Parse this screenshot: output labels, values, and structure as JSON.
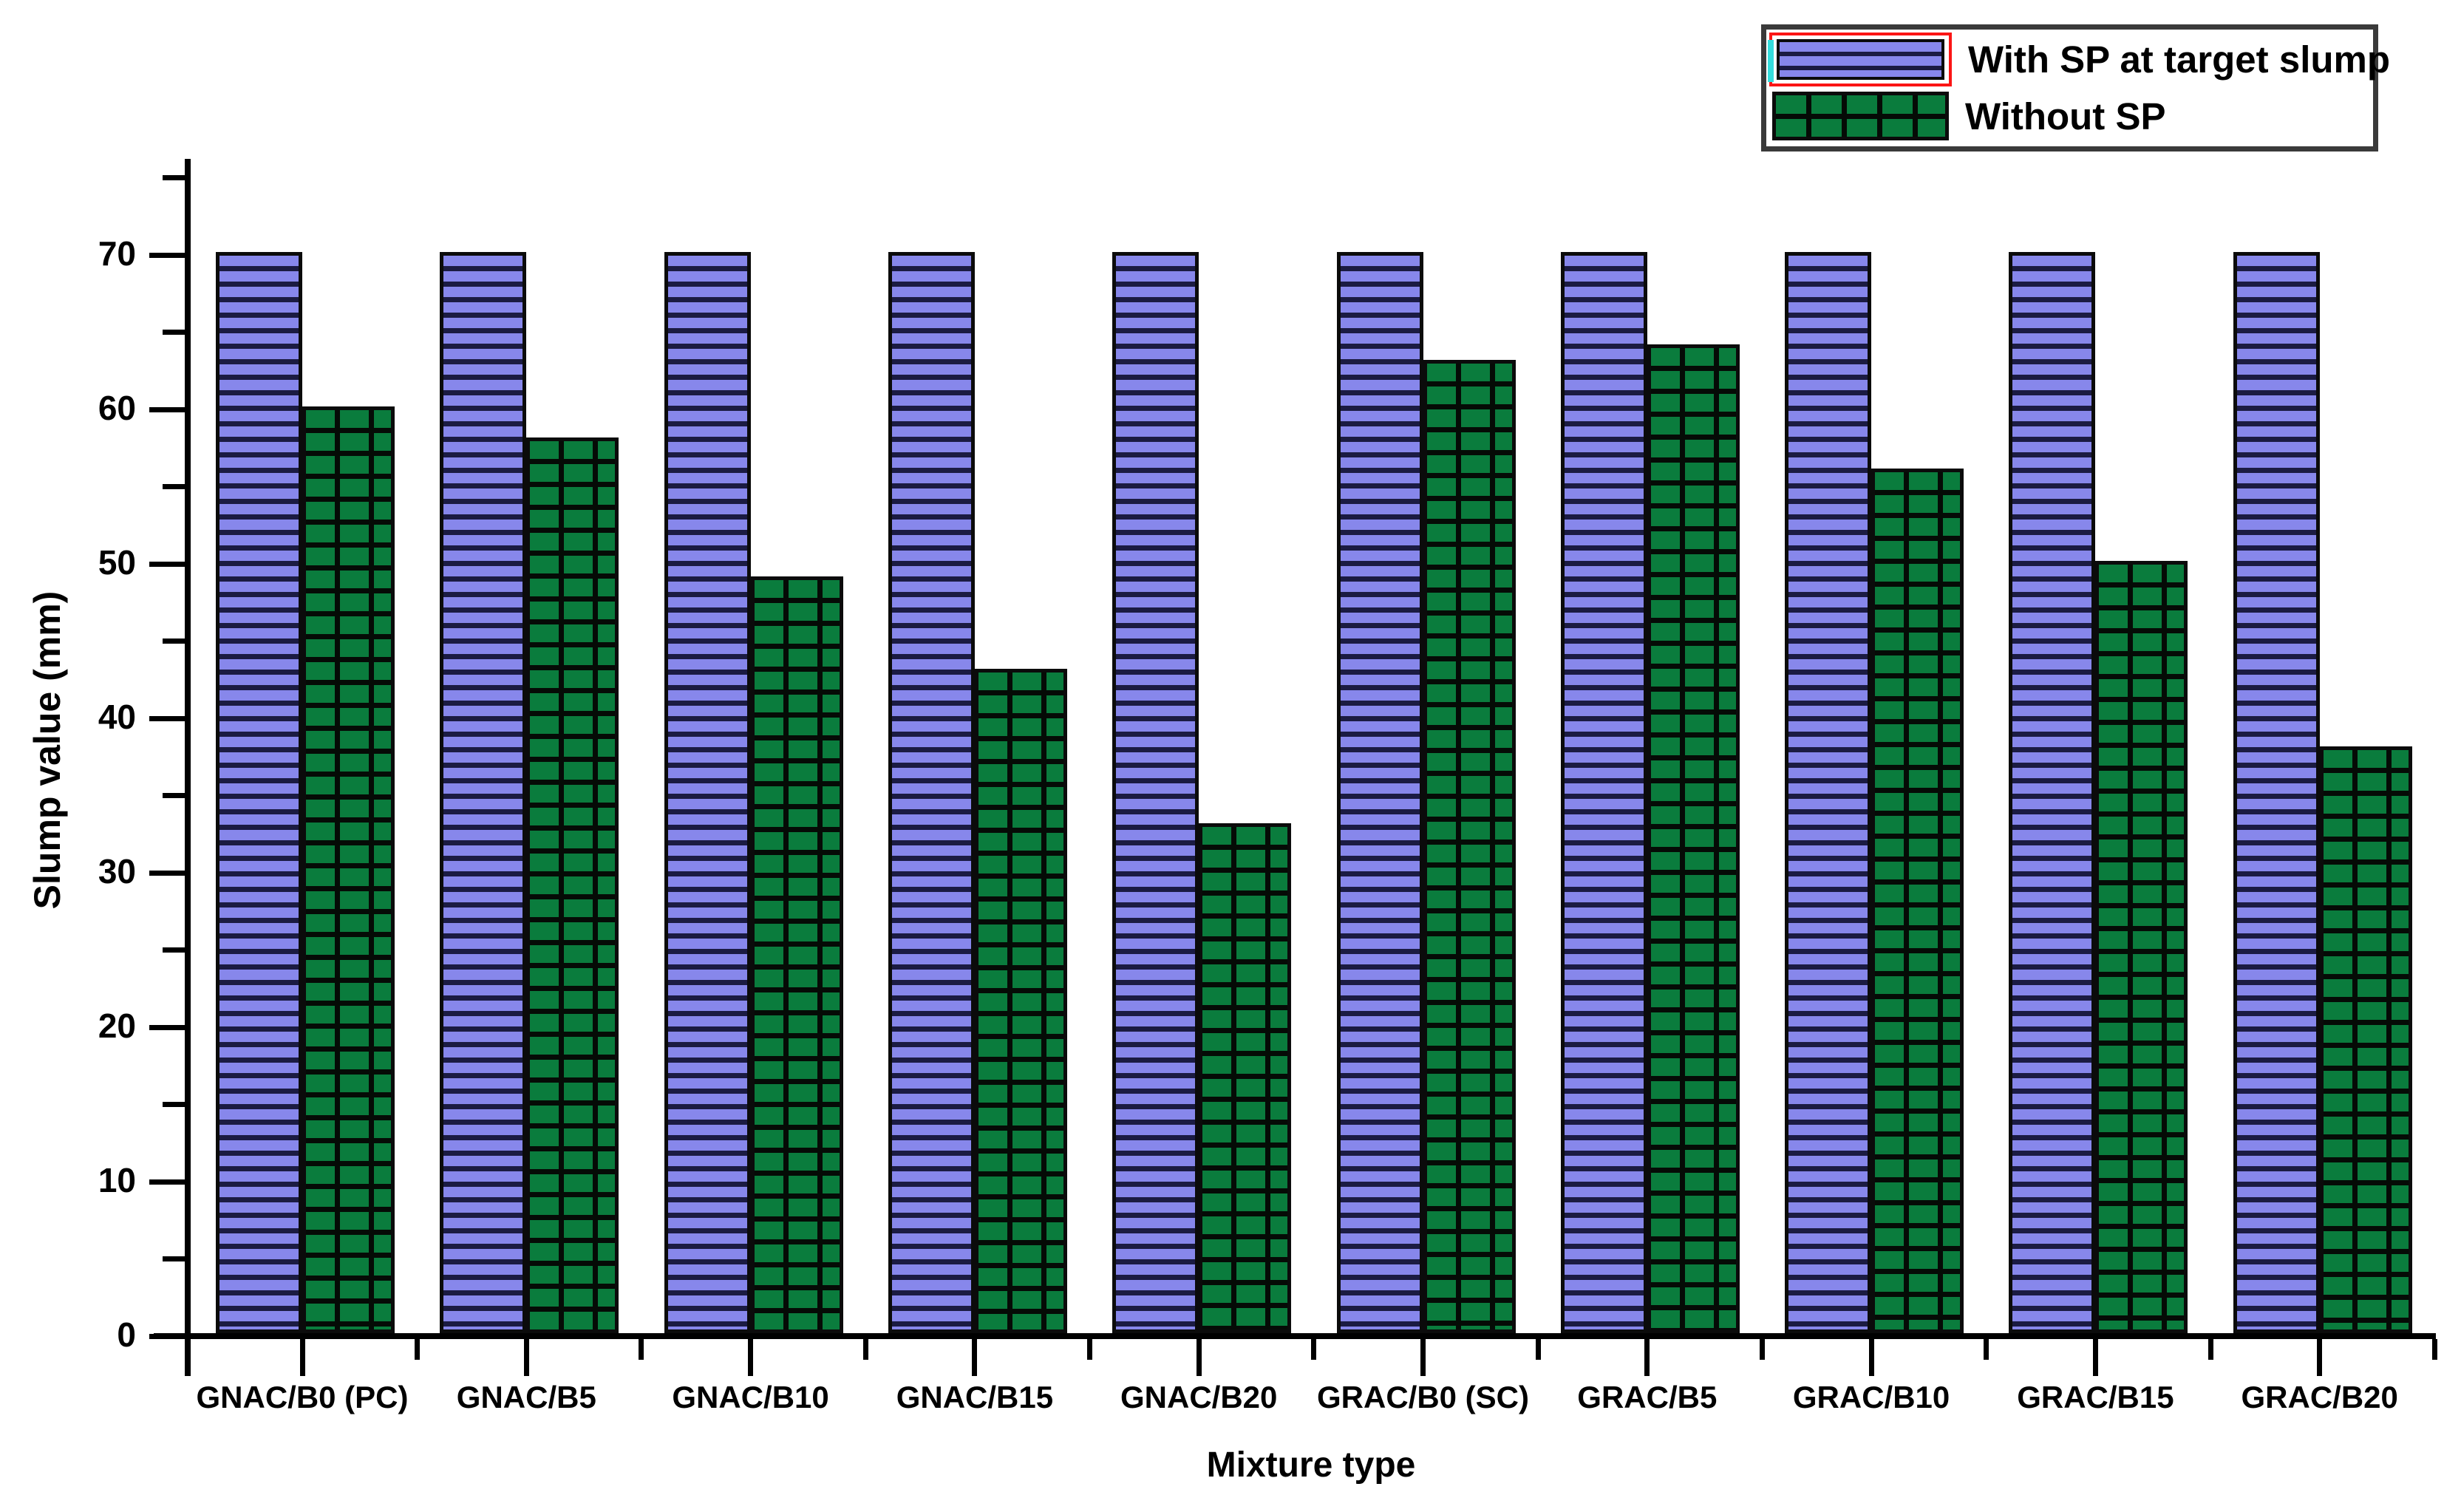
{
  "figure": {
    "background": "#ffffff",
    "text_color": "#000000",
    "axis_color": "#000000"
  },
  "axes": {
    "x_title": "Mixture type",
    "y_title": "Slump value (mm)"
  },
  "legend": {
    "position": "top-right",
    "selected_highlight_border": "#fb1515",
    "selected_highlight_edge": "#35dcdc",
    "box_border_color": "#3a3a3a",
    "items": [
      {
        "label": "With SP at target slump",
        "swatch": "purple-horizontal-stripes",
        "selected": true
      },
      {
        "label": "Without SP",
        "swatch": "green-grid",
        "selected": false
      }
    ]
  },
  "chart_data": {
    "type": "bar",
    "title": "",
    "xlabel": "Mixture type",
    "ylabel": "Slump value (mm)",
    "ylim": [
      0,
      75
    ],
    "y_major_ticks": [
      0,
      10,
      20,
      30,
      40,
      50,
      60,
      70
    ],
    "y_minor_ticks": [
      5,
      15,
      25,
      35,
      45,
      55,
      65,
      75
    ],
    "grid": false,
    "legend_position": "top-right",
    "categories": [
      "GNAC/B0 (PC)",
      "GNAC/B5",
      "GNAC/B10",
      "GNAC/B15",
      "GNAC/B20",
      "GRAC/B0 (SC)",
      "GRAC/B5",
      "GRAC/B10",
      "GRAC/B15",
      "GRAC/B20"
    ],
    "series": [
      {
        "name": "With SP at target slump",
        "values": [
          70,
          70,
          70,
          70,
          70,
          70,
          70,
          70,
          70,
          70
        ],
        "fill": "#8787eb",
        "pattern": "horizontal-stripes",
        "pattern_color": "#1b1b42"
      },
      {
        "name": "Without SP",
        "values": [
          60,
          58,
          49,
          43,
          33,
          63,
          64,
          56,
          50,
          38
        ],
        "fill": "#0a7c3d",
        "pattern": "grid",
        "pattern_color": "#000000"
      }
    ]
  }
}
